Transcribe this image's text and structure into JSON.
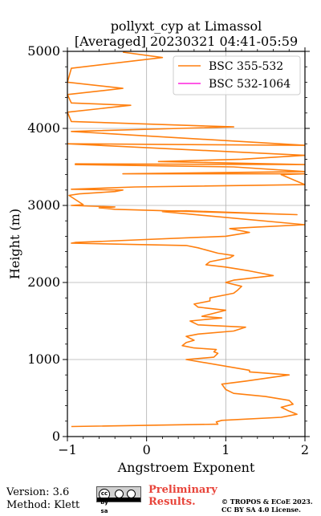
{
  "chart_data": {
    "type": "line",
    "title_line1": "pollyxt_cyp at Limassol",
    "title_line2": "[Averaged] 20230321 04:41-05:59",
    "xlabel": "Angstroem Exponent",
    "ylabel": "Height (m)",
    "xlim": [
      -1,
      2
    ],
    "ylim": [
      0,
      5000
    ],
    "xticks": [
      "−1",
      "0",
      "1",
      "2"
    ],
    "yticks": [
      "0",
      "1000",
      "2000",
      "3000",
      "4000",
      "5000"
    ],
    "grid": true,
    "legend_position": "top-right",
    "series": [
      {
        "name": "BSC 355-532",
        "color": "#ff7f0e",
        "points": [
          [
            -0.95,
            130
          ],
          [
            0.9,
            160
          ],
          [
            0.88,
            190
          ],
          [
            0.95,
            210
          ],
          [
            1.7,
            250
          ],
          [
            1.9,
            290
          ],
          [
            1.8,
            330
          ],
          [
            1.7,
            380
          ],
          [
            1.85,
            420
          ],
          [
            1.8,
            470
          ],
          [
            1.5,
            520
          ],
          [
            1.1,
            560
          ],
          [
            1.0,
            610
          ],
          [
            0.95,
            680
          ],
          [
            1.25,
            720
          ],
          [
            1.8,
            800
          ],
          [
            1.3,
            840
          ],
          [
            1.3,
            860
          ],
          [
            0.5,
            1000
          ],
          [
            0.85,
            1030
          ],
          [
            0.9,
            1080
          ],
          [
            0.85,
            1100
          ],
          [
            0.88,
            1130
          ],
          [
            0.6,
            1150
          ],
          [
            0.45,
            1180
          ],
          [
            0.5,
            1220
          ],
          [
            0.6,
            1250
          ],
          [
            0.5,
            1300
          ],
          [
            0.65,
            1330
          ],
          [
            1.1,
            1370
          ],
          [
            1.25,
            1420
          ],
          [
            0.65,
            1450
          ],
          [
            0.55,
            1500
          ],
          [
            0.95,
            1540
          ],
          [
            0.7,
            1560
          ],
          [
            0.85,
            1600
          ],
          [
            1.0,
            1640
          ],
          [
            0.65,
            1680
          ],
          [
            0.6,
            1720
          ],
          [
            0.8,
            1760
          ],
          [
            0.8,
            1800
          ],
          [
            1.0,
            1840
          ],
          [
            1.1,
            1860
          ],
          [
            1.15,
            1900
          ],
          [
            1.2,
            1950
          ],
          [
            1.0,
            2000
          ],
          [
            1.1,
            2030
          ],
          [
            1.6,
            2090
          ],
          [
            1.3,
            2150
          ],
          [
            1.0,
            2200
          ],
          [
            0.75,
            2230
          ],
          [
            0.8,
            2270
          ],
          [
            1.05,
            2320
          ],
          [
            1.1,
            2350
          ],
          [
            0.9,
            2380
          ],
          [
            0.65,
            2450
          ],
          [
            0.5,
            2480
          ],
          [
            -0.95,
            2510
          ],
          [
            -0.9,
            2520
          ],
          [
            1.0,
            2600
          ],
          [
            1.3,
            2650
          ],
          [
            1.05,
            2700
          ],
          [
            1.4,
            2720
          ],
          [
            2.0,
            2750
          ],
          [
            0.2,
            2920
          ],
          [
            0.5,
            2930
          ],
          [
            1.9,
            2880
          ],
          [
            -0.4,
            2950
          ],
          [
            -0.6,
            2970
          ],
          [
            -0.4,
            2980
          ],
          [
            -0.95,
            3000
          ],
          [
            -0.8,
            3010
          ],
          [
            -0.98,
            3130
          ],
          [
            -0.85,
            3150
          ],
          [
            -0.4,
            3180
          ],
          [
            -0.3,
            3200
          ],
          [
            -0.95,
            3210
          ],
          [
            -0.15,
            3240
          ],
          [
            2.0,
            3270
          ],
          [
            1.7,
            3400
          ],
          [
            2.0,
            3410
          ],
          [
            -0.3,
            3410
          ],
          [
            2.0,
            3440
          ],
          [
            1.1,
            3500
          ],
          [
            -0.9,
            3530
          ],
          [
            -0.9,
            3540
          ],
          [
            2.0,
            3530
          ],
          [
            0.15,
            3570
          ],
          [
            1.2,
            3600
          ],
          [
            2.0,
            3650
          ],
          [
            -1.0,
            3800
          ],
          [
            2.0,
            3780
          ],
          [
            -0.95,
            3960
          ],
          [
            1.1,
            4020
          ],
          [
            -0.95,
            4090
          ],
          [
            -1.0,
            4210
          ],
          [
            -0.2,
            4300
          ],
          [
            -0.95,
            4330
          ],
          [
            -1.0,
            4440
          ],
          [
            -0.3,
            4520
          ],
          [
            -1.0,
            4600
          ],
          [
            -0.95,
            4780
          ],
          [
            0.2,
            4920
          ],
          [
            -0.3,
            4990
          ]
        ]
      },
      {
        "name": "BSC 532-1064",
        "color": "#ff22dd",
        "points": []
      }
    ]
  },
  "footer": {
    "version": "Version: 3.6",
    "method": "Method: Klett",
    "license_badge": "cc by sa",
    "preliminary_line1": "Preliminary",
    "preliminary_line2": "Results.",
    "copyright_line1": "© TROPOS & ECoE 2023.",
    "copyright_line2": "CC BY SA 4.0 License."
  }
}
